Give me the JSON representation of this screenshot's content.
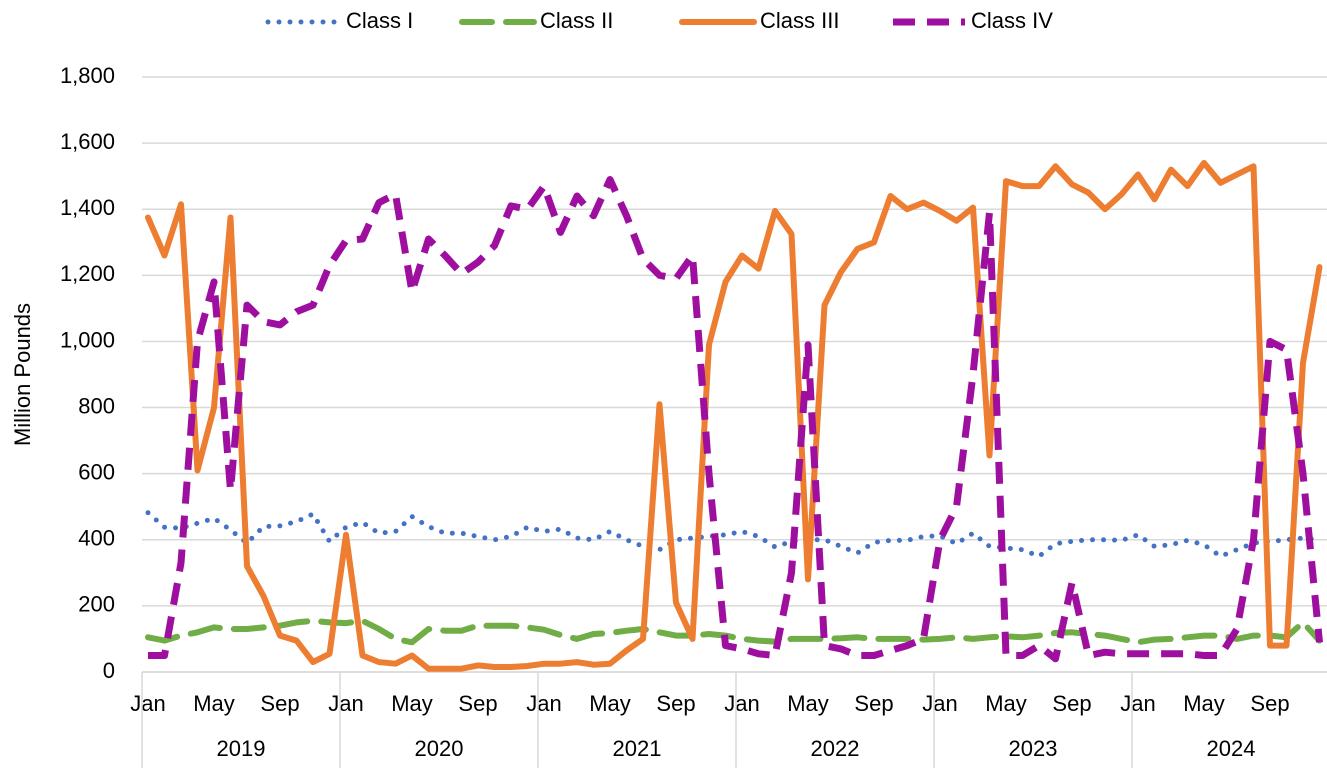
{
  "chart_data": {
    "type": "line",
    "y_label": "Million Pounds",
    "categories": [
      "Jan",
      null,
      null,
      null,
      "May",
      null,
      null,
      null,
      "Sep",
      null,
      null,
      null,
      "Jan",
      null,
      null,
      null,
      "May",
      null,
      null,
      null,
      "Sep",
      null,
      null,
      null,
      "Jan",
      null,
      null,
      null,
      "May",
      null,
      null,
      null,
      "Sep",
      null,
      null,
      null,
      "Jan",
      null,
      null,
      null,
      "May",
      null,
      null,
      null,
      "Sep",
      null,
      null,
      null,
      "Jan",
      null,
      null,
      null,
      "May",
      null,
      null,
      null,
      "Sep",
      null,
      null,
      null,
      "Jan",
      null,
      null,
      null,
      "May",
      null,
      null,
      null,
      "Sep",
      null,
      null,
      null
    ],
    "years": [
      "2019",
      "2020",
      "2021",
      "2022",
      "2023",
      "2024"
    ],
    "ylim": [
      0,
      1800
    ],
    "yticks": [
      0,
      200,
      400,
      600,
      800,
      {
        "value": 1000,
        "label": "1,000"
      },
      {
        "value": 1200,
        "label": "1,200"
      },
      {
        "value": 1400,
        "label": "1,400"
      },
      {
        "value": 1600,
        "label": "1,600"
      },
      {
        "value": 1800,
        "label": "1,800"
      }
    ],
    "grid": true,
    "legend": "top",
    "series": [
      {
        "name": "Class I",
        "color": "#4472c4",
        "style": "dotted",
        "values": [
          482,
          438,
          435,
          450,
          465,
          430,
          390,
          440,
          442,
          455,
          478,
          395,
          438,
          452,
          420,
          425,
          470,
          440,
          420,
          420,
          410,
          400,
          410,
          438,
          425,
          432,
          405,
          400,
          425,
          400,
          380,
          370,
          400,
          405,
          410,
          415,
          425,
          410,
          378,
          395,
          400,
          400,
          380,
          360,
          392,
          398,
          398,
          410,
          412,
          388,
          420,
          380,
          375,
          370,
          350,
          388,
          395,
          400,
          400,
          398,
          415,
          380,
          385,
          398,
          385,
          350,
          370,
          390,
          395,
          400,
          405,
          400
        ]
      },
      {
        "name": "Class II",
        "color": "#70ad47",
        "style": "long-dash",
        "values": [
          105,
          95,
          110,
          120,
          135,
          130,
          130,
          135,
          140,
          150,
          155,
          150,
          148,
          155,
          130,
          100,
          90,
          130,
          125,
          125,
          140,
          140,
          140,
          135,
          128,
          112,
          100,
          115,
          118,
          125,
          130,
          120,
          110,
          110,
          115,
          110,
          100,
          95,
          92,
          100,
          100,
          100,
          102,
          105,
          100,
          100,
          100,
          98,
          100,
          105,
          100,
          105,
          108,
          105,
          110,
          118,
          120,
          115,
          110,
          100,
          90,
          98,
          100,
          105,
          110,
          110,
          100,
          110,
          110,
          105,
          150,
          95
        ]
      },
      {
        "name": "Class III",
        "color": "#ed7d31",
        "style": "solid",
        "values": [
          1375,
          1260,
          1415,
          610,
          800,
          1375,
          320,
          230,
          110,
          95,
          30,
          55,
          415,
          50,
          30,
          25,
          50,
          10,
          10,
          10,
          20,
          15,
          15,
          18,
          25,
          25,
          30,
          22,
          25,
          65,
          100,
          810,
          210,
          100,
          990,
          1180,
          1260,
          1220,
          1395,
          1325,
          280,
          1110,
          1210,
          1280,
          1300,
          1440,
          1400,
          1420,
          1395,
          1365,
          1405,
          655,
          1485,
          1470,
          1470,
          1530,
          1475,
          1450,
          1400,
          1445,
          1505,
          1430,
          1520,
          1470,
          1540,
          1480,
          1505,
          1530,
          80,
          80,
          935,
          1225
        ]
      },
      {
        "name": "Class IV",
        "color": "#9e0fa0",
        "style": "dashed",
        "values": [
          50,
          50,
          330,
          1000,
          1180,
          550,
          1110,
          1060,
          1050,
          1090,
          1110,
          1230,
          1305,
          1310,
          1420,
          1445,
          1150,
          1310,
          1260,
          1205,
          1240,
          1290,
          1410,
          1400,
          1470,
          1330,
          1440,
          1380,
          1490,
          1380,
          1250,
          1200,
          1190,
          1260,
          600,
          80,
          70,
          55,
          50,
          300,
          990,
          80,
          70,
          50,
          50,
          65,
          80,
          100,
          400,
          500,
          900,
          1390,
          50,
          50,
          80,
          40,
          270,
          50,
          60,
          55,
          55,
          55,
          55,
          55,
          50,
          50,
          130,
          400,
          1000,
          975,
          600,
          90
        ]
      }
    ]
  }
}
